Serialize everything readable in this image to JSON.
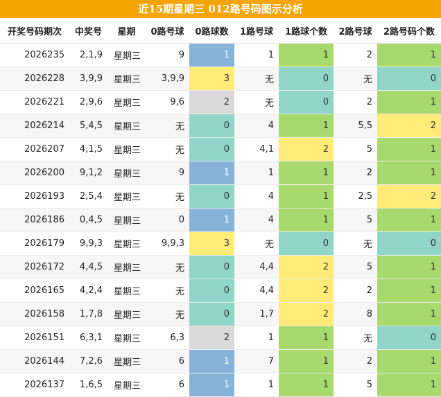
{
  "title": "近15期星期三 012路号码图示分析",
  "table": {
    "header": [
      "开奖号码期次",
      "中奖号",
      "星期",
      "0路号球",
      "0路球数",
      "1路号球",
      "1路球个数",
      "2路号球",
      "2路号码个数"
    ],
    "rows": [
      [
        "2026235",
        "2,1,9",
        "星期三",
        "9",
        1,
        "1",
        1,
        "2",
        1
      ],
      [
        "2026228",
        "3,9,9",
        "星期三",
        "3,9,9",
        3,
        "无",
        0,
        "无",
        0
      ],
      [
        "2026221",
        "2,9,6",
        "星期三",
        "9,6",
        2,
        "无",
        0,
        "2",
        1
      ],
      [
        "2026214",
        "5,4,5",
        "星期三",
        "无",
        0,
        "4",
        1,
        "5,5",
        2
      ],
      [
        "2026207",
        "4,1,5",
        "星期三",
        "无",
        0,
        "4,1",
        2,
        "5",
        1
      ],
      [
        "2026200",
        "9,1,2",
        "星期三",
        "9",
        1,
        "1",
        1,
        "2",
        1
      ],
      [
        "2026193",
        "2,5,4",
        "星期三",
        "无",
        0,
        "4",
        1,
        "2,5",
        2
      ],
      [
        "2026186",
        "0,4,5",
        "星期三",
        "0",
        1,
        "4",
        1,
        "5",
        1
      ],
      [
        "2026179",
        "9,9,3",
        "星期三",
        "9,9,3",
        3,
        "无",
        0,
        "无",
        0
      ],
      [
        "2026172",
        "4,4,5",
        "星期三",
        "无",
        0,
        "4,4",
        2,
        "5",
        1
      ],
      [
        "2026165",
        "4,2,4",
        "星期三",
        "无",
        0,
        "4,4",
        2,
        "2",
        1
      ],
      [
        "2026158",
        "1,7,8",
        "星期三",
        "无",
        0,
        "1,7",
        2,
        "8",
        1
      ],
      [
        "2026151",
        "6,3,1",
        "星期三",
        "6,3",
        2,
        "1",
        1,
        "无",
        0
      ],
      [
        "2026144",
        "7,2,6",
        "星期三",
        "6",
        1,
        "7",
        1,
        "2",
        1
      ],
      [
        "2026137",
        "1,6,5",
        "星期三",
        "6",
        1,
        "1",
        1,
        "5",
        1
      ]
    ]
  }
}
